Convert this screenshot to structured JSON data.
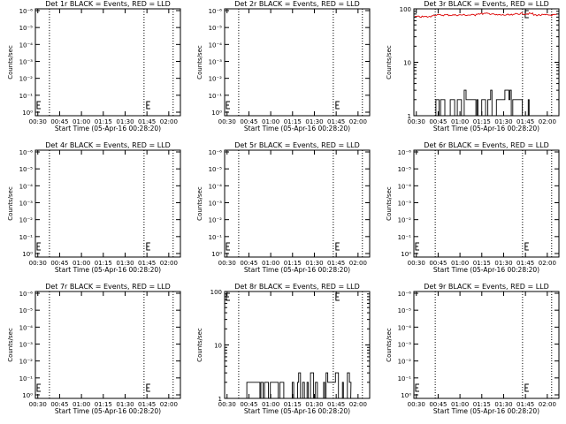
{
  "chart_data": [
    {
      "type": "line",
      "title": "Det 1r BLACK = Events, RED = LLD",
      "xlabel": "Start Time (05-Apr-16 00:28:20)",
      "ylabel": "Counts/sec",
      "x_ticks": [
        "00:30",
        "00:45",
        "01:00",
        "01:15",
        "01:30",
        "01:45",
        "02:00"
      ],
      "y_scale": "log",
      "y_ticks": [
        "10⁰",
        "10⁻¹",
        "10⁻²",
        "10⁻³",
        "10⁻⁴",
        "10⁻⁵",
        "10⁻⁶"
      ],
      "series": [],
      "markers": [
        "00:38",
        "01:43",
        "02:03"
      ],
      "left_marker": true
    },
    {
      "type": "line",
      "title": "Det 2r BLACK = Events, RED = LLD",
      "xlabel": "Start Time (05-Apr-16 00:28:20)",
      "ylabel": "Counts/sec",
      "x_ticks": [
        "00:30",
        "00:45",
        "01:00",
        "01:15",
        "01:30",
        "01:45",
        "02:00"
      ],
      "y_scale": "log",
      "y_ticks": [
        "10⁰",
        "10⁻¹",
        "10⁻²",
        "10⁻³",
        "10⁻⁴",
        "10⁻⁵",
        "10⁻⁶"
      ],
      "series": [],
      "markers": [
        "00:38",
        "01:43",
        "02:03"
      ],
      "left_marker": true
    },
    {
      "type": "line",
      "title": "Det 3r BLACK = Events, RED = LLD",
      "xlabel": "Start Time (05-Apr-16 00:28:20)",
      "ylabel": "Counts/sec",
      "x_ticks": [
        "00:30",
        "00:45",
        "01:00",
        "01:15",
        "01:30",
        "01:45",
        "02:00"
      ],
      "y_scale": "log",
      "y_ticks": [
        "1",
        "10",
        "100"
      ],
      "series": [
        {
          "color": "#000000",
          "kind": "events"
        },
        {
          "color": "#dd0000",
          "kind": "lld"
        }
      ],
      "markers": [
        "00:43",
        "01:43",
        "02:03"
      ],
      "left_marker": false
    },
    {
      "type": "line",
      "title": "Det 4r BLACK = Events, RED = LLD",
      "xlabel": "Start Time (05-Apr-16 00:28:20)",
      "ylabel": "Counts/sec",
      "x_ticks": [
        "00:30",
        "00:45",
        "01:00",
        "01:15",
        "01:30",
        "01:45",
        "02:00"
      ],
      "y_scale": "log",
      "y_ticks": [
        "10⁰",
        "10⁻¹",
        "10⁻²",
        "10⁻³",
        "10⁻⁴",
        "10⁻⁵",
        "10⁻⁶"
      ],
      "series": [],
      "markers": [
        "00:38",
        "01:43",
        "02:03"
      ],
      "left_marker": true
    },
    {
      "type": "line",
      "title": "Det 5r BLACK = Events, RED = LLD",
      "xlabel": "Start Time (05-Apr-16 00:28:20)",
      "ylabel": "Counts/sec",
      "x_ticks": [
        "00:30",
        "00:45",
        "01:00",
        "01:15",
        "01:30",
        "01:45",
        "02:00"
      ],
      "y_scale": "log",
      "y_ticks": [
        "10⁰",
        "10⁻¹",
        "10⁻²",
        "10⁻³",
        "10⁻⁴",
        "10⁻⁵",
        "10⁻⁶"
      ],
      "series": [],
      "markers": [
        "00:38",
        "01:43",
        "02:03"
      ],
      "left_marker": true
    },
    {
      "type": "line",
      "title": "Det 6r BLACK = Events, RED = LLD",
      "xlabel": "Start Time (05-Apr-16 00:28:20)",
      "ylabel": "Counts/sec",
      "x_ticks": [
        "00:30",
        "00:45",
        "01:00",
        "01:15",
        "01:30",
        "01:45",
        "02:00"
      ],
      "y_scale": "log",
      "y_ticks": [
        "10⁰",
        "10⁻¹",
        "10⁻²",
        "10⁻³",
        "10⁻⁴",
        "10⁻⁵",
        "10⁻⁶"
      ],
      "series": [],
      "markers": [
        "00:43",
        "01:43",
        "02:03"
      ],
      "left_marker": true
    },
    {
      "type": "line",
      "title": "Det 7r BLACK = Events, RED = LLD",
      "xlabel": "Start Time (05-Apr-16 00:28:20)",
      "ylabel": "Counts/sec",
      "x_ticks": [
        "00:30",
        "00:45",
        "01:00",
        "01:15",
        "01:30",
        "01:45",
        "02:00"
      ],
      "y_scale": "log",
      "y_ticks": [
        "10⁰",
        "10⁻¹",
        "10⁻²",
        "10⁻³",
        "10⁻⁴",
        "10⁻⁵",
        "10⁻⁶"
      ],
      "series": [],
      "markers": [
        "00:38",
        "01:43",
        "02:03"
      ],
      "left_marker": true
    },
    {
      "type": "line",
      "title": "Det 8r BLACK = Events, RED = LLD",
      "xlabel": "Start Time (05-Apr-16 00:28:20)",
      "ylabel": "Counts/sec",
      "x_ticks": [
        "00:30",
        "00:45",
        "01:00",
        "01:15",
        "01:30",
        "01:45",
        "02:00"
      ],
      "y_scale": "log",
      "y_ticks": [
        "1",
        "10",
        "100"
      ],
      "series": [
        {
          "color": "#000000",
          "kind": "events"
        }
      ],
      "markers": [
        "00:38",
        "01:43",
        "02:03"
      ],
      "left_marker": true
    },
    {
      "type": "line",
      "title": "Det 9r BLACK = Events, RED = LLD",
      "xlabel": "Start Time (05-Apr-16 00:28:20)",
      "ylabel": "Counts/sec",
      "x_ticks": [
        "00:30",
        "00:45",
        "01:00",
        "01:15",
        "01:30",
        "01:45",
        "02:00"
      ],
      "y_scale": "log",
      "y_ticks": [
        "10⁰",
        "10⁻¹",
        "10⁻²",
        "10⁻³",
        "10⁻⁴",
        "10⁻⁵",
        "10⁻⁶"
      ],
      "series": [],
      "markers": [
        "00:43",
        "01:43",
        "02:03"
      ],
      "left_marker": true
    }
  ]
}
